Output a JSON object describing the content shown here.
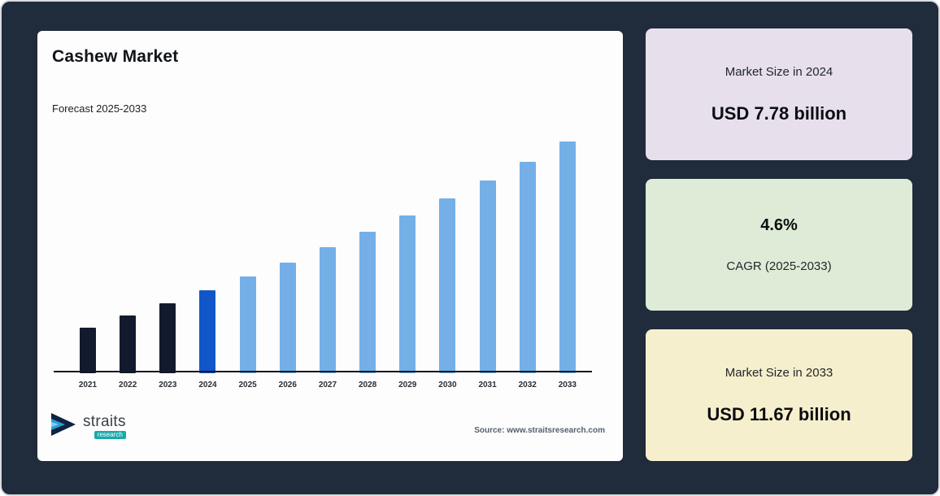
{
  "theme": {
    "background": "#202b3b",
    "chart_card_bg": "#fdfdfe",
    "bar_dark": "#131a2e",
    "bar_highlight": "#1156c8",
    "bar_light": "#74afe8",
    "stat_card_1_bg": "#e7e0ec",
    "stat_card_2_bg": "#deecd7",
    "stat_card_3_bg": "#f6efcd"
  },
  "chart": {
    "title": "Cashew Market",
    "subtitle": "Forecast 2025-2033",
    "source": "Source: www.straitsresearch.com",
    "logo_text": "straits",
    "logo_subtext": "research"
  },
  "chart_data": {
    "type": "bar",
    "title": "Cashew Market",
    "subtitle": "Forecast 2025-2033",
    "unit": "USD billion",
    "categories": [
      "2021",
      "2022",
      "2023",
      "2024",
      "2025",
      "2026",
      "2027",
      "2028",
      "2029",
      "2030",
      "2031",
      "2032",
      "2033"
    ],
    "values": [
      6.8,
      7.11,
      7.44,
      7.78,
      8.14,
      8.51,
      8.9,
      9.31,
      9.74,
      10.19,
      10.66,
      11.15,
      11.67
    ],
    "ylim": [
      5.6,
      12
    ],
    "grid": false,
    "legend": false,
    "highlight_category": "2024",
    "bar_color_keys": [
      "bar_dark",
      "bar_dark",
      "bar_dark",
      "bar_highlight",
      "bar_light",
      "bar_light",
      "bar_light",
      "bar_light",
      "bar_light",
      "bar_light",
      "bar_light",
      "bar_light",
      "bar_light"
    ]
  },
  "stats": [
    {
      "top_text": "Market Size in 2024",
      "bottom_text": "USD 7.78 billion"
    },
    {
      "top_text": "4.6%",
      "bottom_text": "CAGR (2025-2033)"
    },
    {
      "top_text": "Market Size in 2033",
      "bottom_text": "USD 11.67 billion"
    }
  ]
}
